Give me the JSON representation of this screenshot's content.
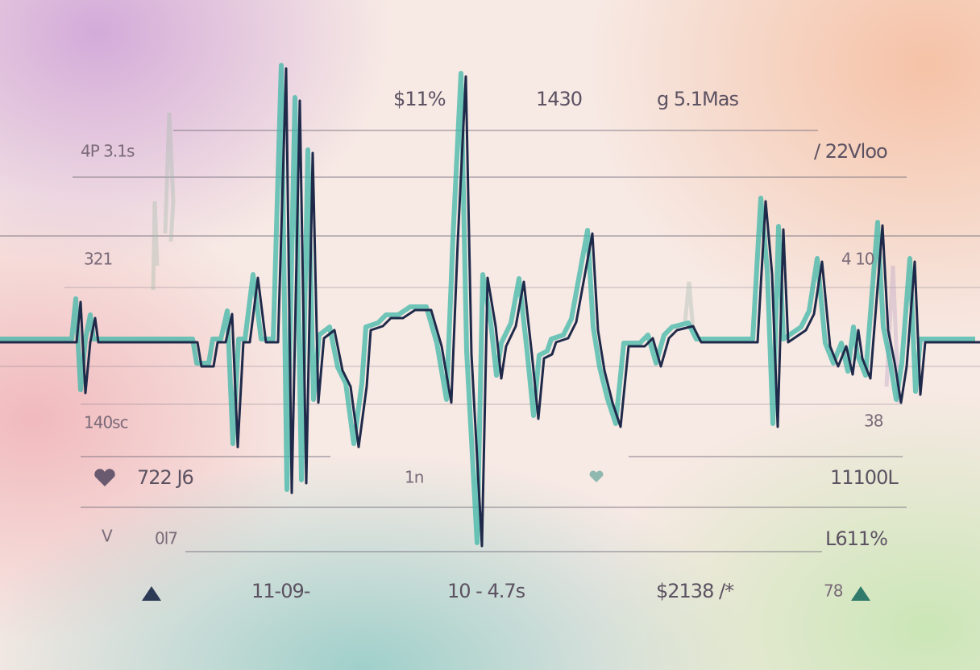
{
  "labels": [
    "$11%",
    "1430",
    "g 5.1Mas",
    "4P 3.1s",
    "/ 22Vloo",
    "321",
    "4 10",
    "140sc",
    "38",
    "722 J6",
    "1n",
    "11100L",
    "V",
    "0l7",
    "L611%",
    "11-09-",
    "10 - 4.7s",
    "$2138 /*",
    "78"
  ]
}
